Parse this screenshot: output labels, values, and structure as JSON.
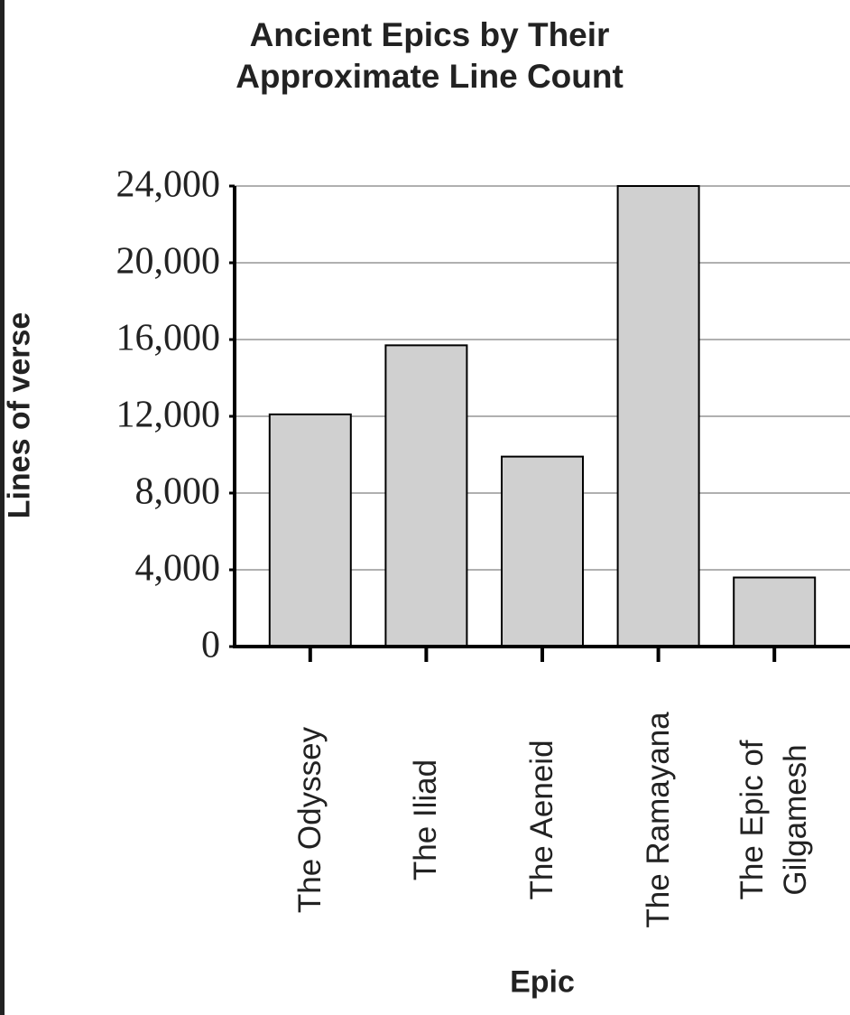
{
  "chart_data": {
    "type": "bar",
    "title": "Ancient Epics by Their Approximate Line Count",
    "x_label": "Epic",
    "y_label": "Lines of verse",
    "categories": [
      "The Odyssey",
      "The Iliad",
      "The Aeneid",
      "The Ramayana",
      "The Epic of Gilgamesh"
    ],
    "values": [
      12100,
      15700,
      9900,
      24000,
      3600
    ],
    "color": "#d0d0d0",
    "ylim": [
      0,
      24000
    ],
    "yticks": [
      0,
      {
        "value": 4000,
        "label": "4,000"
      },
      {
        "value": 8000,
        "label": "8,000"
      },
      {
        "value": 12000,
        "label": "12,000"
      },
      {
        "value": 16000,
        "label": "16,000"
      },
      {
        "value": 20000,
        "label": "20,000"
      },
      {
        "value": 24000,
        "label": "24,000"
      }
    ],
    "grid": true
  }
}
